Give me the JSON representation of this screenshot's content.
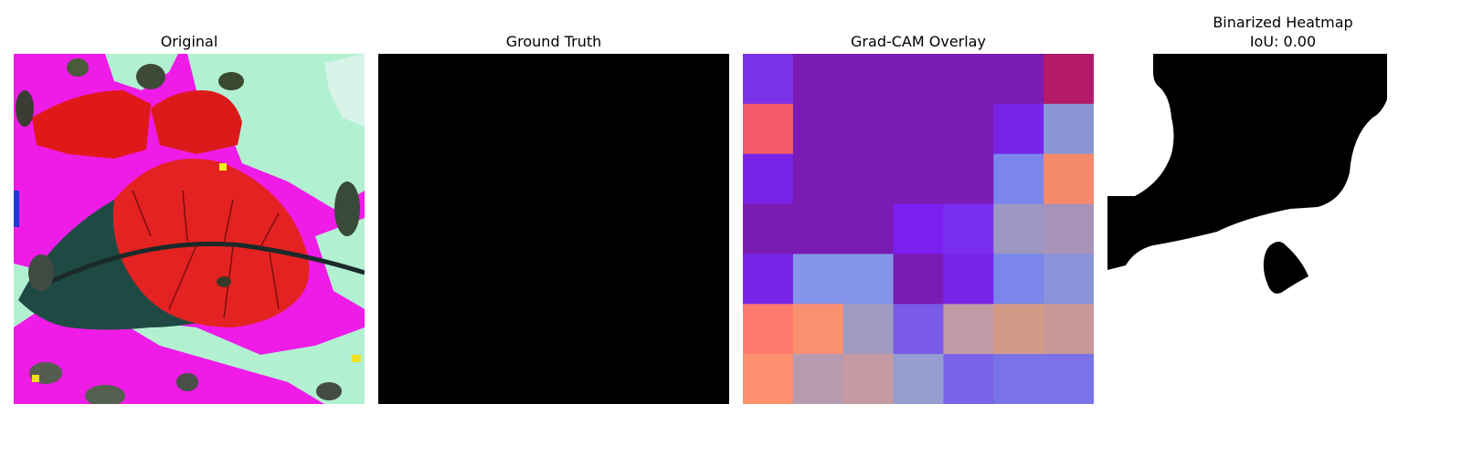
{
  "panels": [
    {
      "title": "Original"
    },
    {
      "title": "Ground Truth"
    },
    {
      "title": "Grad-CAM Overlay"
    },
    {
      "title": "Binarized Heatmap",
      "subtitle": "IoU: 0.00"
    }
  ],
  "colors": {
    "background": "#ffffff",
    "ground_truth_fill": "#000000",
    "mask_fill": "#000000"
  },
  "gradcam_grid": [
    [
      "#7b31e6",
      "#7a1bb3",
      "#7a1bb3",
      "#7a1bb3",
      "#7a1bb3",
      "#7a1bb3",
      "#b31b6a"
    ],
    [
      "#f55b6b",
      "#7a1bb3",
      "#7a1bb3",
      "#7a1bb3",
      "#7a1bb3",
      "#7724e8",
      "#8b96d6"
    ],
    [
      "#7724e8",
      "#7a1bb3",
      "#7a1bb3",
      "#7a1bb3",
      "#7a1bb3",
      "#7b86ed",
      "#f58a6b"
    ],
    [
      "#7a1bb3",
      "#7a1bb3",
      "#7a1bb3",
      "#7a1ff0",
      "#7a2ff0",
      "#9c97c3",
      "#a893b8"
    ],
    [
      "#7724e8",
      "#8494e8",
      "#8494e8",
      "#7a1bb3",
      "#7724e8",
      "#7a86ea",
      "#8a92da"
    ],
    [
      "#ff7a6e",
      "#f99070",
      "#a09bc3",
      "#7a5ae8",
      "#c29aa6",
      "#d49a88",
      "#c89898"
    ],
    [
      "#ff9070",
      "#b69ab0",
      "#c69aa2",
      "#969dcf",
      "#7a63e8",
      "#7a72e8",
      "#7a72e8"
    ]
  ]
}
